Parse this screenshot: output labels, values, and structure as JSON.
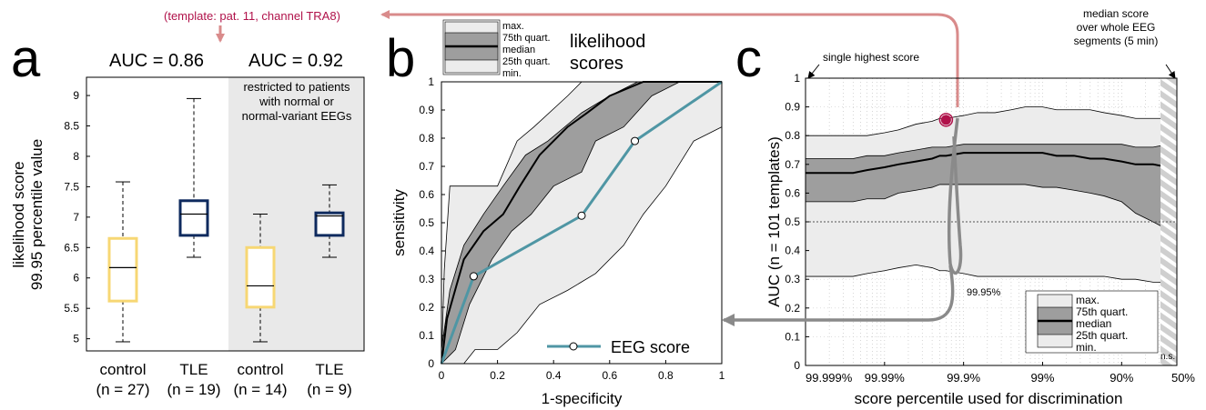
{
  "template_note": "(template: pat. 11, channel TRA8)",
  "colors": {
    "control": "#f7d774",
    "tle": "#0e2a5e",
    "eeg": "#4f96a4",
    "highlight": "#b0124a",
    "arrow_red": "#d98b8b",
    "arrow_gray": "#8a8a8a",
    "band_light": "#ececec",
    "band_dark": "#9e9e9e",
    "shade": "#e9e9e9"
  },
  "chart_data": [
    {
      "panel": "a",
      "type": "box",
      "ylabel_line1": "likelihood score",
      "ylabel_line2": "99.95 percentile value",
      "ylim": [
        4.8,
        9.3
      ],
      "yticks": [
        "5",
        "5.5",
        "6",
        "6.5",
        "7",
        "7.5",
        "8",
        "8.5",
        "9"
      ],
      "auc_labels": [
        "AUC = 0.86",
        "AUC = 0.92"
      ],
      "shaded_note": [
        "restricted to patients",
        "with normal or",
        "normal-variant EEGs"
      ],
      "groups": [
        {
          "name": "control",
          "n": "(n = 27)",
          "color": "control",
          "whisker_low": 4.95,
          "q1": 5.62,
          "median": 6.17,
          "q3": 6.65,
          "whisker_high": 7.58
        },
        {
          "name": "TLE",
          "n": "(n = 19)",
          "color": "tle",
          "whisker_low": 6.34,
          "q1": 6.7,
          "median": 7.05,
          "q3": 7.27,
          "whisker_high": 8.95
        },
        {
          "name": "control",
          "n": "(n = 14)",
          "color": "control",
          "whisker_low": 4.95,
          "q1": 5.52,
          "median": 5.87,
          "q3": 6.5,
          "whisker_high": 7.05
        },
        {
          "name": "TLE",
          "n": "(n = 9)",
          "color": "tle",
          "whisker_low": 6.34,
          "q1": 6.7,
          "median": 7.02,
          "q3": 7.07,
          "whisker_high": 7.53
        }
      ]
    },
    {
      "panel": "b",
      "type": "roc",
      "xlabel": "1-specificity",
      "ylabel": "sensitivity",
      "xlim": [
        0,
        1
      ],
      "ylim": [
        0,
        1
      ],
      "xticks": [
        "0",
        "0.2",
        "0.4",
        "0.6",
        "0.8",
        "1"
      ],
      "yticks": [
        "0",
        "0.1",
        "0.2",
        "0.3",
        "0.4",
        "0.5",
        "0.6",
        "0.7",
        "0.8",
        "0.9",
        "1"
      ],
      "legend_entries": [
        "max.",
        "75th quart.",
        "median",
        "25th quart.",
        "min."
      ],
      "legend_title": [
        "likelihood",
        "scores"
      ],
      "eeg_legend": "EEG score",
      "max": [
        [
          0,
          0
        ],
        [
          0.01,
          0.33
        ],
        [
          0.03,
          0.63
        ],
        [
          0.2,
          0.63
        ],
        [
          0.27,
          0.79
        ],
        [
          0.33,
          0.84
        ],
        [
          0.45,
          0.95
        ],
        [
          0.5,
          1
        ],
        [
          1,
          1
        ]
      ],
      "q75": [
        [
          0,
          0.05
        ],
        [
          0.03,
          0.26
        ],
        [
          0.08,
          0.42
        ],
        [
          0.15,
          0.53
        ],
        [
          0.22,
          0.63
        ],
        [
          0.3,
          0.74
        ],
        [
          0.38,
          0.79
        ],
        [
          0.5,
          0.89
        ],
        [
          0.6,
          0.95
        ],
        [
          0.7,
          1
        ],
        [
          1,
          1
        ]
      ],
      "median": [
        [
          0,
          0
        ],
        [
          0.02,
          0.16
        ],
        [
          0.08,
          0.37
        ],
        [
          0.15,
          0.47
        ],
        [
          0.22,
          0.53
        ],
        [
          0.28,
          0.63
        ],
        [
          0.35,
          0.74
        ],
        [
          0.45,
          0.84
        ],
        [
          0.52,
          0.89
        ],
        [
          0.6,
          0.95
        ],
        [
          0.72,
          1
        ],
        [
          1,
          1
        ]
      ],
      "q25": [
        [
          0,
          0
        ],
        [
          0.05,
          0.05
        ],
        [
          0.1,
          0.21
        ],
        [
          0.18,
          0.37
        ],
        [
          0.25,
          0.47
        ],
        [
          0.32,
          0.53
        ],
        [
          0.4,
          0.63
        ],
        [
          0.5,
          0.68
        ],
        [
          0.55,
          0.79
        ],
        [
          0.65,
          0.84
        ],
        [
          0.75,
          0.95
        ],
        [
          0.85,
          1
        ],
        [
          1,
          1
        ]
      ],
      "min": [
        [
          0,
          0
        ],
        [
          0.08,
          0
        ],
        [
          0.12,
          0.05
        ],
        [
          0.2,
          0.05
        ],
        [
          0.27,
          0.11
        ],
        [
          0.35,
          0.21
        ],
        [
          0.45,
          0.26
        ],
        [
          0.55,
          0.32
        ],
        [
          0.65,
          0.42
        ],
        [
          0.72,
          0.53
        ],
        [
          0.8,
          0.63
        ],
        [
          0.9,
          0.79
        ],
        [
          1,
          0.84
        ]
      ],
      "eeg": [
        [
          0,
          0
        ],
        [
          0.115,
          0.31
        ],
        [
          0.5,
          0.525
        ],
        [
          0.69,
          0.79
        ],
        [
          1,
          1
        ]
      ],
      "eeg_markers": [
        [
          0.115,
          0.31
        ],
        [
          0.5,
          0.525
        ],
        [
          0.69,
          0.79
        ]
      ]
    },
    {
      "panel": "c",
      "type": "area",
      "xlabel": "score percentile used for discrimination",
      "ylabel": "AUC (n = 101 templates)",
      "xticks": [
        "99.999%",
        "99.99%",
        "99.9%",
        "99%",
        "90%",
        "50%"
      ],
      "x_scale": "log of tail fraction (100% - percentile)",
      "ylim": [
        0,
        1
      ],
      "yticks": [
        "0",
        "0.1",
        "0.2",
        "0.3",
        "0.4",
        "0.5",
        "0.6",
        "0.7",
        "0.8",
        "0.9",
        "1"
      ],
      "x_tail": [
        0.001,
        0.0015,
        0.0025,
        0.004,
        0.006,
        0.01,
        0.015,
        0.025,
        0.04,
        0.05,
        0.06,
        0.1,
        0.15,
        0.25,
        0.4,
        0.6,
        1,
        1.5,
        2.5,
        4,
        6,
        10,
        15,
        25,
        40,
        50
      ],
      "max": [
        0.8,
        0.8,
        0.8,
        0.8,
        0.8,
        0.81,
        0.82,
        0.84,
        0.85,
        0.86,
        0.86,
        0.87,
        0.88,
        0.88,
        0.89,
        0.9,
        0.9,
        0.89,
        0.89,
        0.89,
        0.88,
        0.87,
        0.86,
        0.86,
        0.86,
        0.85
      ],
      "q75": [
        0.72,
        0.72,
        0.72,
        0.72,
        0.73,
        0.73,
        0.74,
        0.75,
        0.76,
        0.76,
        0.76,
        0.77,
        0.77,
        0.77,
        0.77,
        0.77,
        0.77,
        0.77,
        0.77,
        0.77,
        0.77,
        0.77,
        0.76,
        0.76,
        0.77,
        0.76
      ],
      "median": [
        0.67,
        0.67,
        0.67,
        0.67,
        0.68,
        0.69,
        0.7,
        0.71,
        0.72,
        0.73,
        0.73,
        0.74,
        0.74,
        0.74,
        0.74,
        0.74,
        0.74,
        0.73,
        0.73,
        0.72,
        0.72,
        0.71,
        0.7,
        0.7,
        0.69,
        0.68
      ],
      "q25": [
        0.57,
        0.57,
        0.57,
        0.57,
        0.58,
        0.58,
        0.6,
        0.61,
        0.62,
        0.63,
        0.63,
        0.63,
        0.63,
        0.63,
        0.63,
        0.63,
        0.62,
        0.62,
        0.61,
        0.6,
        0.59,
        0.57,
        0.53,
        0.5,
        0.47,
        0.46
      ],
      "min": [
        0.31,
        0.31,
        0.31,
        0.31,
        0.32,
        0.33,
        0.34,
        0.35,
        0.34,
        0.33,
        0.33,
        0.32,
        0.31,
        0.31,
        0.31,
        0.31,
        0.31,
        0.31,
        0.31,
        0.31,
        0.31,
        0.3,
        0.3,
        0.29,
        0.29,
        0.28
      ],
      "reference_line": 0.5,
      "highlight_point": {
        "x_tail": 0.06,
        "y": 0.855
      },
      "annotation_single": "single highest score",
      "annotation_median": [
        "median score",
        "over whole EEG",
        "segments (5 min)"
      ],
      "annotation_pct": "99.95%",
      "ns_label": "n.s.",
      "legend_entries": [
        "max.",
        "75th quart.",
        "median",
        "25th quart.",
        "min."
      ]
    }
  ],
  "panel_letters": [
    "a",
    "b",
    "c"
  ]
}
